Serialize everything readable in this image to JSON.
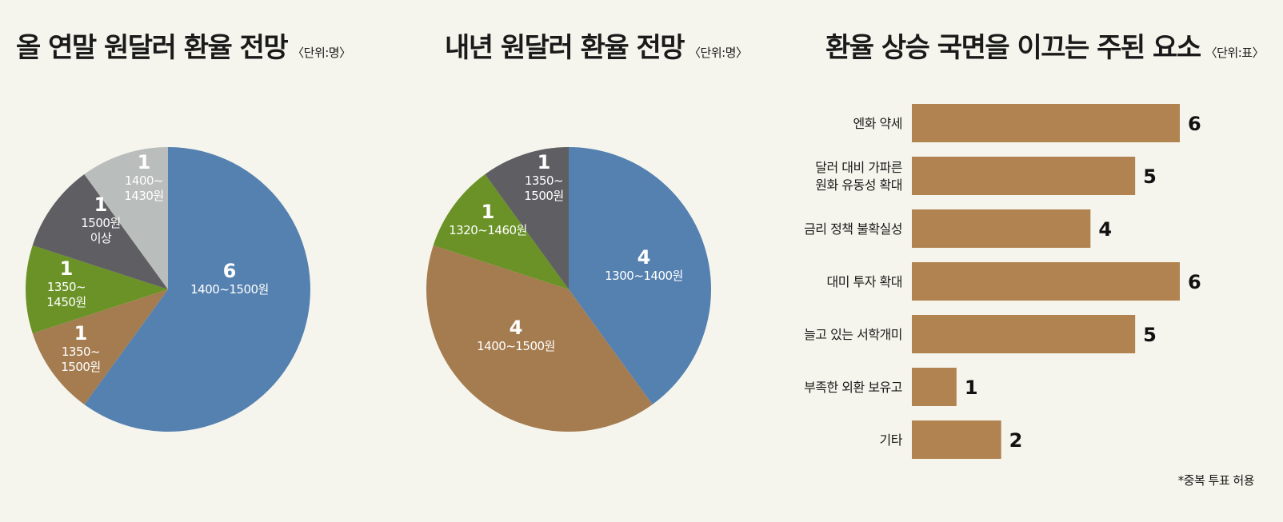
{
  "chart_data": [
    {
      "type": "pie",
      "title": "올 연말 원달러 환율 전망",
      "unit": "〈단위:명〉",
      "slices": [
        {
          "count": "6",
          "range": [
            "1400~1500원"
          ],
          "value": 6,
          "color": "#5581b0"
        },
        {
          "count": "1",
          "range": [
            "1350~",
            "1500원"
          ],
          "value": 1,
          "color": "#a57c50"
        },
        {
          "count": "1",
          "range": [
            "1350~",
            "1450원"
          ],
          "value": 1,
          "color": "#6a9226"
        },
        {
          "count": "1",
          "range": [
            "1500원",
            "이상"
          ],
          "value": 1,
          "color": "#5f5f63"
        },
        {
          "count": "1",
          "range": [
            "1400~",
            "1430원"
          ],
          "value": 1,
          "color": "#b9bdbb"
        }
      ]
    },
    {
      "type": "pie",
      "title": "내년 원달러 환율 전망",
      "unit": "〈단위:명〉",
      "slices": [
        {
          "count": "4",
          "range": [
            "1300~1400원"
          ],
          "value": 4,
          "color": "#5581b0"
        },
        {
          "count": "4",
          "range": [
            "1400~1500원"
          ],
          "value": 4,
          "color": "#a57c50"
        },
        {
          "count": "1",
          "range": [
            "1320~1460원"
          ],
          "value": 1,
          "color": "#6a9226"
        },
        {
          "count": "1",
          "range": [
            "1350~",
            "1500원"
          ],
          "value": 1,
          "color": "#5f5f63"
        }
      ]
    },
    {
      "type": "bar",
      "orientation": "horizontal",
      "title": "환율 상승 국면을 이끄는 주된 요소",
      "unit": "〈단위:표〉",
      "color": "#b08350",
      "categories": [
        [
          "엔화 약세"
        ],
        [
          "달러 대비 가파른",
          "원화 유동성 확대"
        ],
        [
          "금리 정책 불확실성"
        ],
        [
          "대미 투자 확대"
        ],
        [
          "늘고 있는 서학개미"
        ],
        [
          "부족한 외환 보유고"
        ],
        [
          "기타"
        ]
      ],
      "values": [
        6,
        5,
        4,
        6,
        5,
        1,
        2
      ],
      "xlim": [
        0,
        6
      ],
      "note": "*중복 투표 허용"
    }
  ]
}
